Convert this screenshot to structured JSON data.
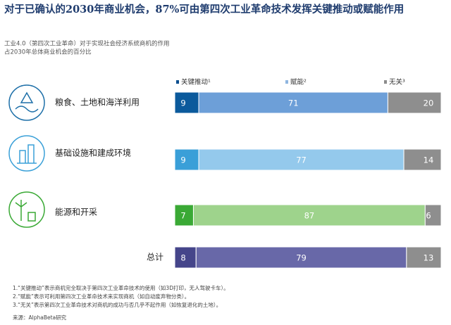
{
  "chart_data": {
    "type": "stacked-bar-horizontal",
    "title": "对于已确认的2030年商业机会，87%可由第四次工业革命技术发挥关键推动或赋能作用",
    "subtitle": [
      "工业4.0（第四次工业革命）对于实现社会经济系统商机的作用",
      "占2030年总体商业机会的百分比"
    ],
    "categories": [
      "粮食、土地和海洋利用",
      "基础设施和建成环境",
      "能源和开采",
      "总计"
    ],
    "xlim": [
      0,
      100
    ],
    "series": [
      {
        "name": "关键推动¹",
        "color": "#0b4f8f",
        "colors": [
          "#0b5a9c",
          "#3a9fd8",
          "#3aa935",
          "#45458a"
        ],
        "values": [
          9,
          9,
          7,
          8
        ]
      },
      {
        "name": "赋能²",
        "color": "#8fb6e0",
        "colors": [
          "#6d9fd8",
          "#94c9ec",
          "#9ed38c",
          "#6868a8"
        ],
        "values": [
          71,
          77,
          87,
          79
        ]
      },
      {
        "name": "无关³",
        "color": "#8c8c8c",
        "colors": [
          "#8e8e8e",
          "#8e8e8e",
          "#8e8e8e",
          "#8e8e8e"
        ],
        "values": [
          20,
          14,
          6,
          13
        ]
      }
    ],
    "footnotes": [
      "1.“关键推动”表示商机完全取决于第四次工业革命技术的使用（如3D打印，无人驾驶卡车）。",
      "2.“赋能”表示可利用第四次工业革命技术来实现商机（如自动废弃物分类）。",
      "3.“无关”表示第四次工业革命技术对商机的成功与否几乎不起作用（如恢复退化的土地）。"
    ],
    "source": "来源：AlphaBeta研究"
  }
}
